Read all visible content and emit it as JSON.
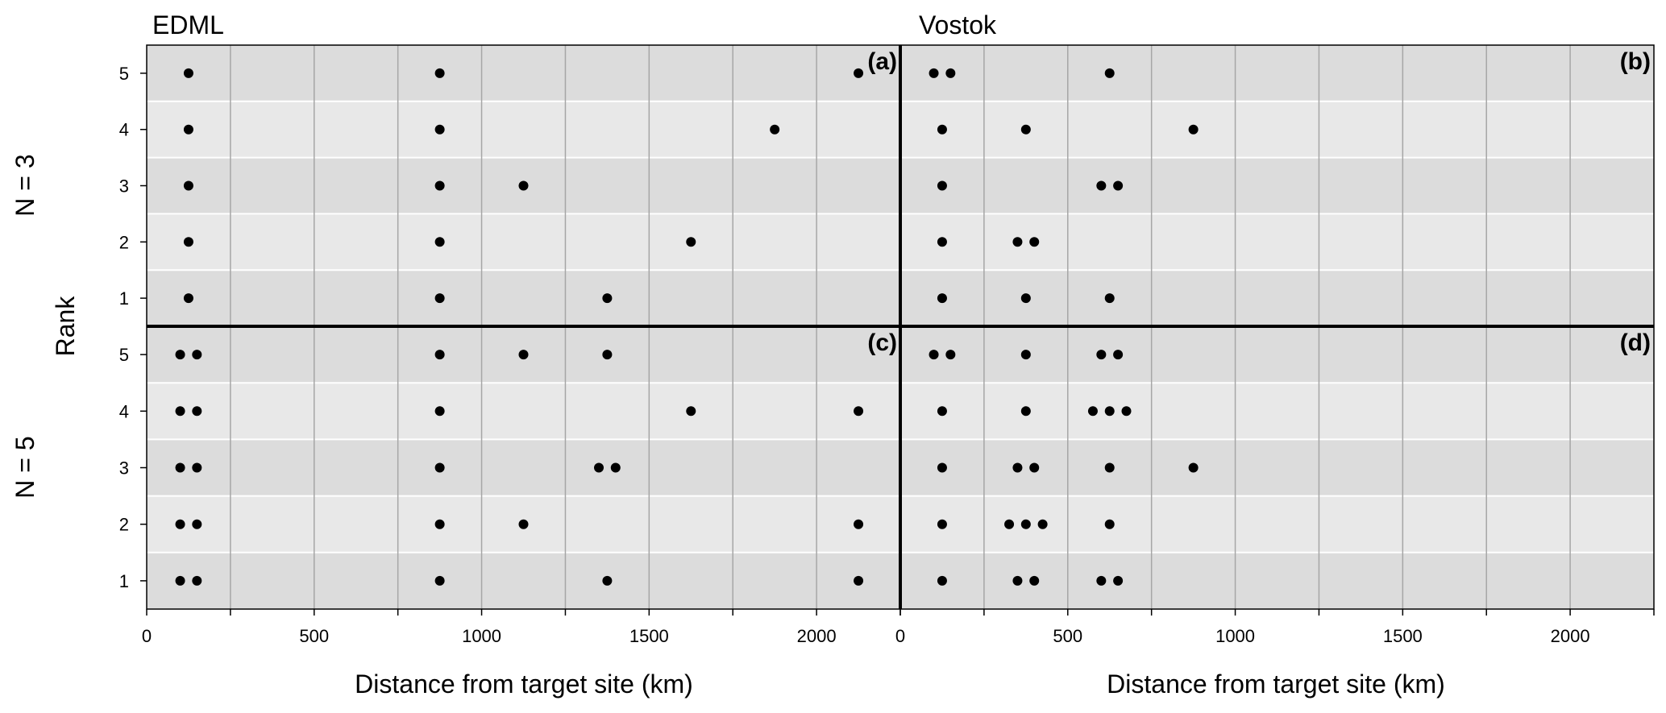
{
  "figure": {
    "column_titles": [
      "EDML",
      "Vostok"
    ],
    "row_labels": [
      "N = 3",
      "N = 5"
    ],
    "ylabel": "Rank",
    "xlabel": "Distance from target site (km)"
  },
  "chart_data": [
    {
      "panel": "(a)",
      "site": "EDML",
      "n": "N = 3",
      "type": "scatter",
      "xlim": [
        0,
        2250
      ],
      "ylim": [
        0.5,
        5.5
      ],
      "xticks": [
        0,
        500,
        1000,
        1500,
        2000
      ],
      "yticks": [
        1,
        2,
        3,
        4,
        5
      ],
      "vertical_gridlines_every": 250,
      "points": [
        {
          "x": 125,
          "y": 5
        },
        {
          "x": 875,
          "y": 5
        },
        {
          "x": 2125,
          "y": 5
        },
        {
          "x": 125,
          "y": 4
        },
        {
          "x": 875,
          "y": 4
        },
        {
          "x": 1875,
          "y": 4
        },
        {
          "x": 125,
          "y": 3
        },
        {
          "x": 875,
          "y": 3
        },
        {
          "x": 1125,
          "y": 3
        },
        {
          "x": 125,
          "y": 2
        },
        {
          "x": 875,
          "y": 2
        },
        {
          "x": 1625,
          "y": 2
        },
        {
          "x": 125,
          "y": 1
        },
        {
          "x": 875,
          "y": 1
        },
        {
          "x": 1375,
          "y": 1
        }
      ]
    },
    {
      "panel": "(b)",
      "site": "Vostok",
      "n": "N = 3",
      "type": "scatter",
      "xlim": [
        0,
        2250
      ],
      "ylim": [
        0.5,
        5.5
      ],
      "xticks": [
        0,
        500,
        1000,
        1500,
        2000
      ],
      "yticks": [
        1,
        2,
        3,
        4,
        5
      ],
      "vertical_gridlines_every": 250,
      "points": [
        {
          "x": 100,
          "y": 5
        },
        {
          "x": 150,
          "y": 5
        },
        {
          "x": 625,
          "y": 5
        },
        {
          "x": 125,
          "y": 4
        },
        {
          "x": 375,
          "y": 4
        },
        {
          "x": 875,
          "y": 4
        },
        {
          "x": 125,
          "y": 3
        },
        {
          "x": 600,
          "y": 3
        },
        {
          "x": 650,
          "y": 3
        },
        {
          "x": 125,
          "y": 2
        },
        {
          "x": 350,
          "y": 2
        },
        {
          "x": 400,
          "y": 2
        },
        {
          "x": 125,
          "y": 1
        },
        {
          "x": 375,
          "y": 1
        },
        {
          "x": 625,
          "y": 1
        }
      ]
    },
    {
      "panel": "(c)",
      "site": "EDML",
      "n": "N = 5",
      "type": "scatter",
      "xlim": [
        0,
        2250
      ],
      "ylim": [
        0.5,
        5.5
      ],
      "xticks": [
        0,
        500,
        1000,
        1500,
        2000
      ],
      "yticks": [
        1,
        2,
        3,
        4,
        5
      ],
      "vertical_gridlines_every": 250,
      "points": [
        {
          "x": 100,
          "y": 5
        },
        {
          "x": 150,
          "y": 5
        },
        {
          "x": 875,
          "y": 5
        },
        {
          "x": 1125,
          "y": 5
        },
        {
          "x": 1375,
          "y": 5
        },
        {
          "x": 100,
          "y": 4
        },
        {
          "x": 150,
          "y": 4
        },
        {
          "x": 875,
          "y": 4
        },
        {
          "x": 1625,
          "y": 4
        },
        {
          "x": 2125,
          "y": 4
        },
        {
          "x": 100,
          "y": 3
        },
        {
          "x": 150,
          "y": 3
        },
        {
          "x": 875,
          "y": 3
        },
        {
          "x": 1350,
          "y": 3
        },
        {
          "x": 1400,
          "y": 3
        },
        {
          "x": 100,
          "y": 2
        },
        {
          "x": 150,
          "y": 2
        },
        {
          "x": 875,
          "y": 2
        },
        {
          "x": 1125,
          "y": 2
        },
        {
          "x": 2125,
          "y": 2
        },
        {
          "x": 100,
          "y": 1
        },
        {
          "x": 150,
          "y": 1
        },
        {
          "x": 875,
          "y": 1
        },
        {
          "x": 1375,
          "y": 1
        },
        {
          "x": 2125,
          "y": 1
        }
      ]
    },
    {
      "panel": "(d)",
      "site": "Vostok",
      "n": "N = 5",
      "type": "scatter",
      "xlim": [
        0,
        2250
      ],
      "ylim": [
        0.5,
        5.5
      ],
      "xticks": [
        0,
        500,
        1000,
        1500,
        2000
      ],
      "yticks": [
        1,
        2,
        3,
        4,
        5
      ],
      "vertical_gridlines_every": 250,
      "points": [
        {
          "x": 100,
          "y": 5
        },
        {
          "x": 150,
          "y": 5
        },
        {
          "x": 375,
          "y": 5
        },
        {
          "x": 600,
          "y": 5
        },
        {
          "x": 650,
          "y": 5
        },
        {
          "x": 125,
          "y": 4
        },
        {
          "x": 375,
          "y": 4
        },
        {
          "x": 575,
          "y": 4
        },
        {
          "x": 625,
          "y": 4
        },
        {
          "x": 675,
          "y": 4
        },
        {
          "x": 125,
          "y": 3
        },
        {
          "x": 350,
          "y": 3
        },
        {
          "x": 400,
          "y": 3
        },
        {
          "x": 625,
          "y": 3
        },
        {
          "x": 875,
          "y": 3
        },
        {
          "x": 125,
          "y": 2
        },
        {
          "x": 325,
          "y": 2
        },
        {
          "x": 375,
          "y": 2
        },
        {
          "x": 425,
          "y": 2
        },
        {
          "x": 625,
          "y": 2
        },
        {
          "x": 125,
          "y": 1
        },
        {
          "x": 350,
          "y": 1
        },
        {
          "x": 400,
          "y": 1
        },
        {
          "x": 600,
          "y": 1
        },
        {
          "x": 650,
          "y": 1
        }
      ]
    }
  ]
}
